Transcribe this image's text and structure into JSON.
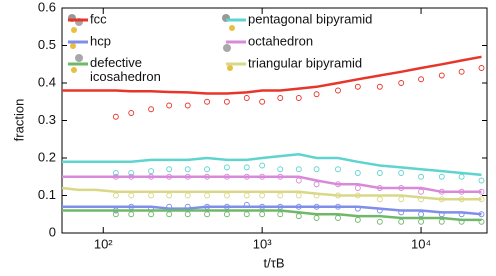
{
  "chart_data": {
    "type": "line",
    "xlabel": "t/τB",
    "ylabel": "fraction",
    "xscale": "log",
    "x": [
      55,
      70,
      90,
      120,
      150,
      200,
      260,
      340,
      450,
      600,
      800,
      1000,
      1300,
      1700,
      2200,
      3000,
      4000,
      5500,
      7500,
      10000,
      13500,
      18000,
      24000
    ],
    "xlim": [
      55,
      26000
    ],
    "xticks": [
      {
        "value": 100,
        "label": "10²"
      },
      {
        "value": 1000,
        "label": "10³"
      },
      {
        "value": 10000,
        "label": "10⁴"
      }
    ],
    "ylim": [
      0,
      0.6
    ],
    "yticks": [
      0,
      0.1,
      0.2,
      0.3,
      0.4,
      0.5,
      0.6
    ],
    "series": [
      {
        "name": "fcc",
        "color": "#e8352a",
        "values": [
          0.38,
          0.38,
          0.38,
          0.38,
          0.378,
          0.378,
          0.376,
          0.375,
          0.372,
          0.372,
          0.375,
          0.38,
          0.38,
          0.385,
          0.39,
          0.4,
          0.41,
          0.42,
          0.43,
          0.44,
          0.45,
          0.46,
          0.47
        ],
        "marker_values": [
          null,
          null,
          null,
          0.31,
          0.32,
          0.33,
          0.34,
          0.34,
          0.35,
          0.35,
          0.36,
          0.35,
          0.36,
          0.36,
          0.37,
          0.38,
          0.39,
          0.39,
          0.4,
          0.41,
          0.42,
          0.43,
          0.44
        ]
      },
      {
        "name": "hcp",
        "color": "#7f8ee8",
        "values": [
          0.07,
          0.07,
          0.07,
          0.07,
          0.07,
          0.07,
          0.065,
          0.065,
          0.07,
          0.07,
          0.07,
          0.07,
          0.07,
          0.07,
          0.07,
          0.07,
          0.07,
          0.065,
          0.06,
          0.06,
          0.055,
          0.055,
          0.05
        ],
        "marker_values": [
          null,
          null,
          null,
          0.06,
          0.07,
          0.065,
          0.07,
          0.07,
          0.07,
          0.07,
          0.075,
          0.07,
          0.07,
          0.07,
          0.07,
          0.07,
          0.065,
          0.06,
          0.055,
          0.05,
          0.05,
          0.05,
          0.05
        ]
      },
      {
        "name": "defective icosahedron",
        "color": "#6fb86a",
        "values": [
          0.06,
          0.06,
          0.06,
          0.06,
          0.06,
          0.06,
          0.06,
          0.06,
          0.06,
          0.06,
          0.06,
          0.06,
          0.06,
          0.055,
          0.05,
          0.05,
          0.045,
          0.045,
          0.04,
          0.04,
          0.04,
          0.035,
          0.035
        ],
        "marker_values": [
          null,
          null,
          null,
          0.05,
          0.05,
          0.05,
          0.05,
          0.05,
          0.05,
          0.05,
          0.05,
          0.05,
          0.05,
          0.045,
          0.04,
          0.04,
          0.035,
          0.03,
          0.03,
          0.03,
          0.03,
          0.03,
          0.03
        ]
      },
      {
        "name": "pentagonal bipyramid",
        "color": "#5fd4cf",
        "values": [
          0.19,
          0.19,
          0.19,
          0.19,
          0.19,
          0.195,
          0.195,
          0.195,
          0.2,
          0.195,
          0.195,
          0.2,
          0.205,
          0.21,
          0.2,
          0.2,
          0.19,
          0.18,
          0.175,
          0.17,
          0.165,
          0.16,
          0.155
        ],
        "marker_values": [
          null,
          null,
          null,
          0.16,
          0.16,
          0.165,
          0.17,
          0.17,
          0.17,
          0.175,
          0.175,
          0.18,
          0.17,
          0.17,
          0.17,
          0.17,
          0.16,
          0.16,
          0.16,
          0.15,
          0.15,
          0.15,
          0.14
        ]
      },
      {
        "name": "octahedron",
        "color": "#d88ad8",
        "values": [
          0.15,
          0.15,
          0.15,
          0.15,
          0.15,
          0.15,
          0.15,
          0.15,
          0.15,
          0.15,
          0.15,
          0.15,
          0.15,
          0.15,
          0.14,
          0.13,
          0.13,
          0.12,
          0.12,
          0.12,
          0.11,
          0.11,
          0.11
        ],
        "marker_values": [
          null,
          null,
          null,
          0.15,
          0.15,
          0.15,
          0.15,
          0.15,
          0.15,
          0.15,
          0.15,
          0.15,
          0.15,
          0.14,
          0.13,
          0.13,
          0.12,
          0.12,
          0.12,
          0.11,
          0.11,
          0.11,
          0.11
        ]
      },
      {
        "name": "triangular bipyramid",
        "color": "#d8d888",
        "values": [
          0.12,
          0.115,
          0.115,
          0.11,
          0.11,
          0.11,
          0.11,
          0.11,
          0.11,
          0.11,
          0.11,
          0.11,
          0.11,
          0.11,
          0.105,
          0.1,
          0.1,
          0.1,
          0.1,
          0.095,
          0.09,
          0.09,
          0.09
        ],
        "marker_values": [
          null,
          null,
          null,
          0.1,
          0.1,
          0.1,
          0.1,
          0.1,
          0.1,
          0.1,
          0.1,
          0.1,
          0.1,
          0.1,
          0.1,
          0.1,
          0.1,
          0.09,
          0.09,
          0.09,
          0.09,
          0.09,
          0.09
        ]
      }
    ]
  }
}
